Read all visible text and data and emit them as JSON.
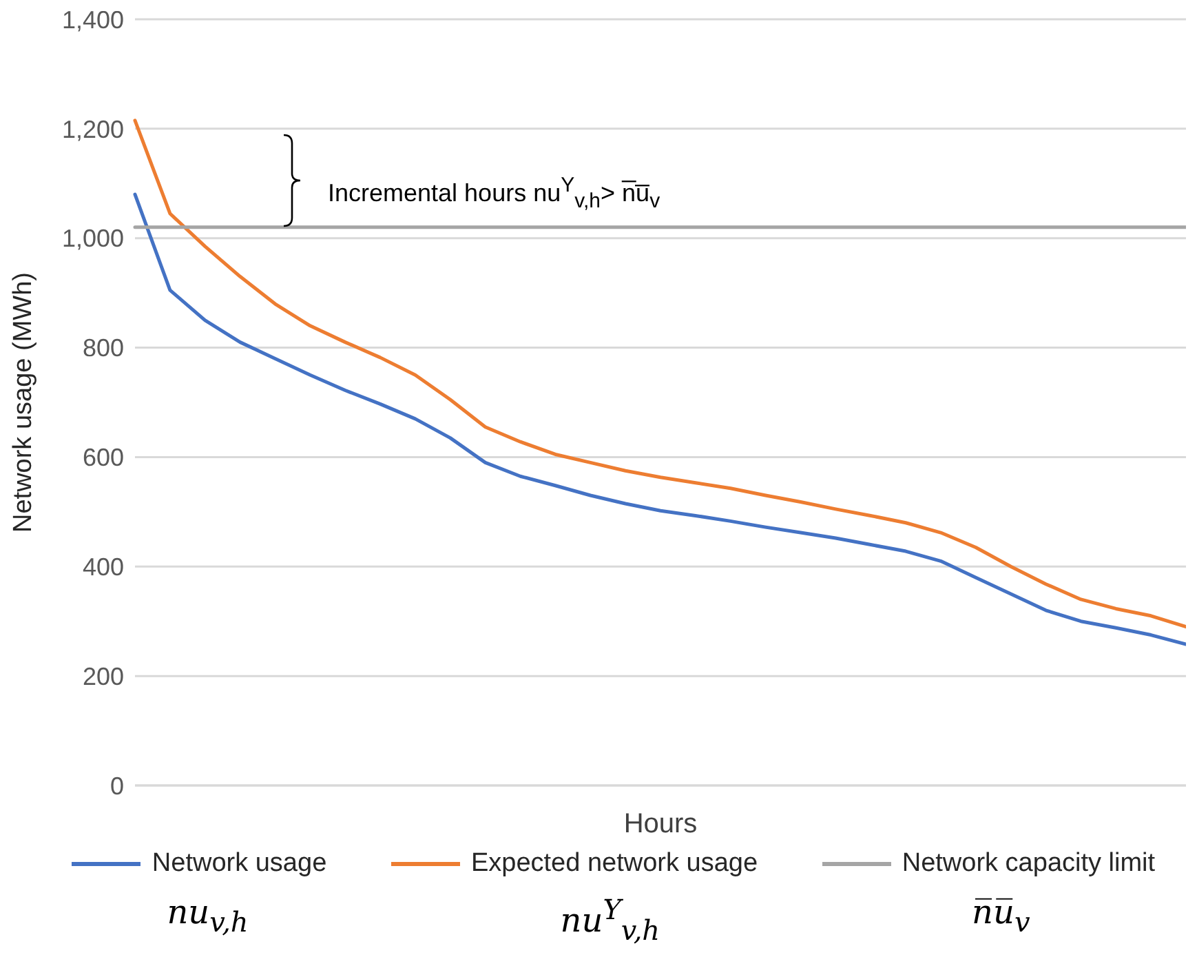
{
  "chart_data": {
    "type": "line",
    "ylabel": "Network usage (MWh)",
    "xlabel": "Hours",
    "categories": [
      null,
      null,
      null,
      null,
      null,
      null,
      null,
      null,
      null,
      null,
      null,
      null,
      null,
      null,
      null,
      null,
      null,
      null,
      null,
      null,
      null,
      null,
      null,
      null,
      null,
      null,
      null,
      null,
      null,
      null,
      null
    ],
    "series": [
      {
        "name": "Network usage",
        "color": "#4472c4",
        "values": [
          1080,
          905,
          850,
          810,
          780,
          750,
          722,
          697,
          670,
          635,
          590,
          565,
          548,
          530,
          515,
          502,
          493,
          483,
          472,
          462,
          452,
          440,
          428,
          410,
          380,
          350,
          320,
          300,
          288,
          275,
          258
        ]
      },
      {
        "name": "Expected network usage",
        "color": "#ed7d31",
        "values": [
          1215,
          1045,
          985,
          930,
          880,
          840,
          810,
          782,
          750,
          705,
          655,
          628,
          605,
          590,
          575,
          563,
          553,
          543,
          530,
          518,
          505,
          493,
          480,
          462,
          435,
          400,
          368,
          340,
          323,
          310,
          290
        ]
      },
      {
        "name": "Network capacity limit",
        "color": "#a5a5a5",
        "values": [
          1020,
          1020,
          1020,
          1020,
          1020,
          1020,
          1020,
          1020,
          1020,
          1020,
          1020,
          1020,
          1020,
          1020,
          1020,
          1020,
          1020,
          1020,
          1020,
          1020,
          1020,
          1020,
          1020,
          1020,
          1020,
          1020,
          1020,
          1020,
          1020,
          1020,
          1020
        ]
      }
    ],
    "ylim": [
      0,
      1400
    ],
    "yticks": [
      0,
      200,
      400,
      600,
      800,
      {
        "value": 1000,
        "label": "1,000"
      },
      {
        "value": 1200,
        "label": "1,200"
      },
      {
        "value": 1400,
        "label": "1,400"
      }
    ],
    "grid": "y",
    "legend": "bottom",
    "marker": "none",
    "line_style": "solid",
    "annotations": [
      "Incremental hours nu$^{Y}$$_{v,h}$> n̅u̅$_{v}$",
      "nu$_{v,h}$",
      "nu$^{Y}$$_{v,h}$",
      "n̅u̅$_{v}$"
    ]
  }
}
